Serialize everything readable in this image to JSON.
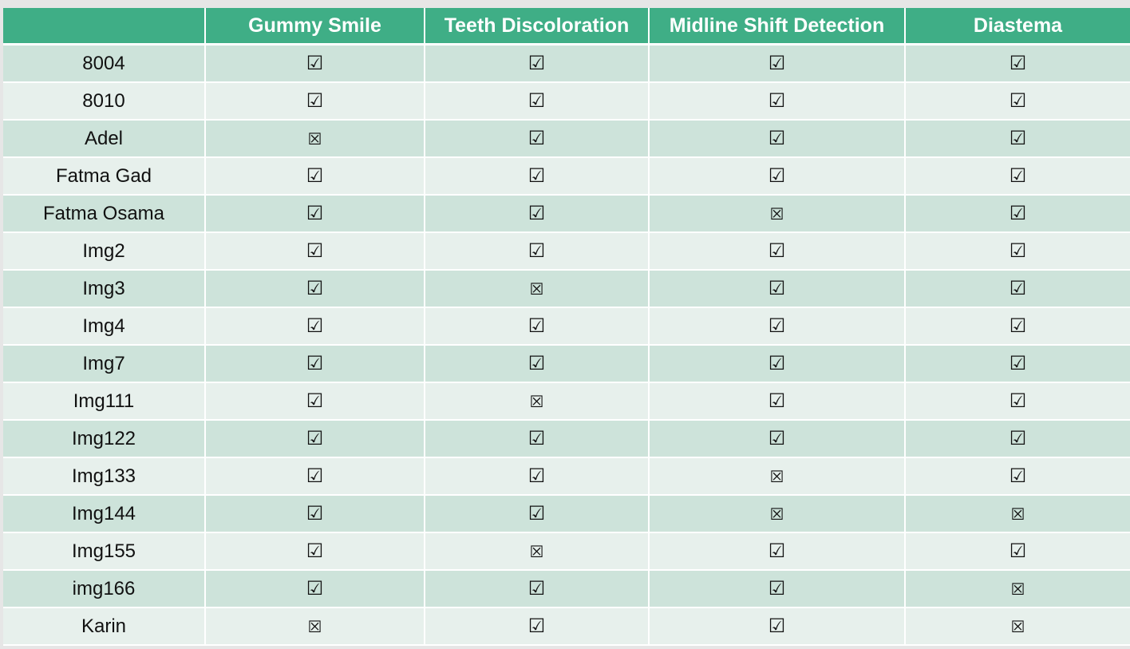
{
  "table": {
    "columns": [
      "",
      "Gummy Smile",
      "Teeth Discoloration",
      "Midline Shift Detection",
      "Diastema"
    ],
    "symbols": {
      "yes": "☑",
      "no": "☒"
    },
    "rows": [
      {
        "name": "8004",
        "values": [
          "yes",
          "yes",
          "yes",
          "yes"
        ]
      },
      {
        "name": "8010",
        "values": [
          "yes",
          "yes",
          "yes",
          "yes"
        ]
      },
      {
        "name": "Adel",
        "values": [
          "no",
          "yes",
          "yes",
          "yes"
        ]
      },
      {
        "name": "Fatma Gad",
        "values": [
          "yes",
          "yes",
          "yes",
          "yes"
        ]
      },
      {
        "name": "Fatma Osama",
        "values": [
          "yes",
          "yes",
          "no",
          "yes"
        ]
      },
      {
        "name": "Img2",
        "values": [
          "yes",
          "yes",
          "yes",
          "yes"
        ]
      },
      {
        "name": "Img3",
        "values": [
          "yes",
          "no",
          "yes",
          "yes"
        ]
      },
      {
        "name": "Img4",
        "values": [
          "yes",
          "yes",
          "yes",
          "yes"
        ]
      },
      {
        "name": "Img7",
        "values": [
          "yes",
          "yes",
          "yes",
          "yes"
        ]
      },
      {
        "name": "Img111",
        "values": [
          "yes",
          "no",
          "yes",
          "yes"
        ]
      },
      {
        "name": "Img122",
        "values": [
          "yes",
          "yes",
          "yes",
          "yes"
        ]
      },
      {
        "name": "Img133",
        "values": [
          "yes",
          "yes",
          "no",
          "yes"
        ]
      },
      {
        "name": "Img144",
        "values": [
          "yes",
          "yes",
          "no",
          "no"
        ]
      },
      {
        "name": "Img155",
        "values": [
          "yes",
          "no",
          "yes",
          "yes"
        ]
      },
      {
        "name": "img166",
        "values": [
          "yes",
          "yes",
          "yes",
          "no"
        ]
      },
      {
        "name": "Karin",
        "values": [
          "no",
          "yes",
          "yes",
          "no"
        ]
      }
    ]
  },
  "colors": {
    "header_bg": "#3fae86",
    "row_odd_bg": "#cde3da",
    "row_even_bg": "#e7f0ec"
  }
}
